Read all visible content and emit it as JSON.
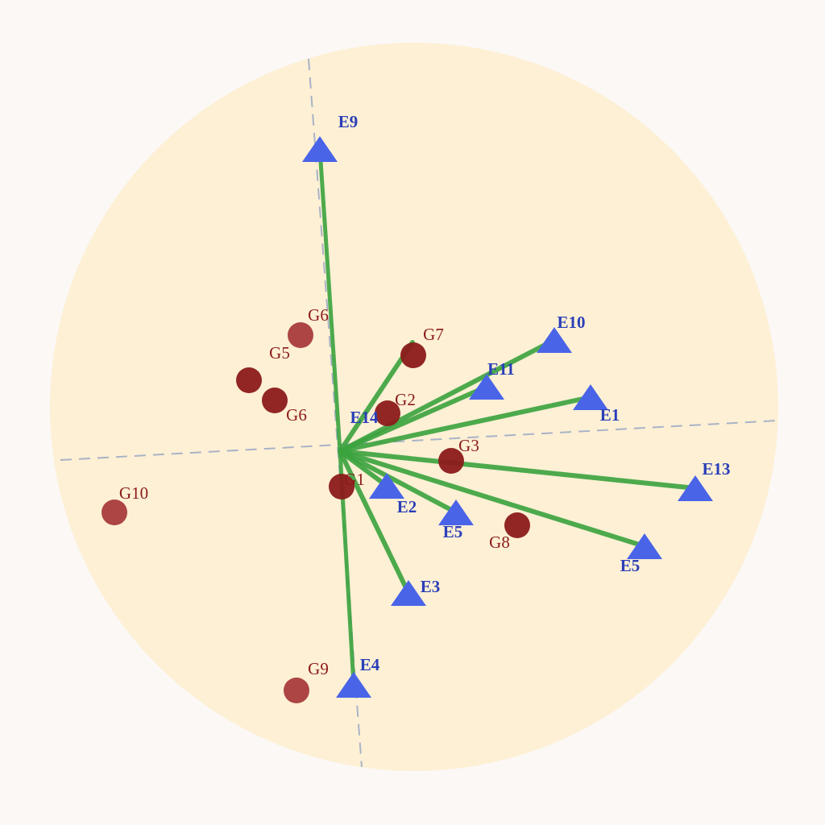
{
  "chart_data": {
    "type": "scatter",
    "title": "",
    "xlabel": "",
    "ylabel": "",
    "grid": false,
    "colors": {
      "background_circle": "#fdf0d5",
      "vector": "#3aa33e",
      "environment": "#4a64e8",
      "genotype": "#8b1a1a",
      "genotype_light": "#a83b3b",
      "axis": "#a9b3c6"
    },
    "environments": [
      {
        "label": "E9",
        "x": -0.25,
        "y": 3.75
      },
      {
        "label": "E10",
        "x": 2.66,
        "y": 1.38
      },
      {
        "label": "E11",
        "x": 1.82,
        "y": 0.8
      },
      {
        "label": "E1",
        "x": 3.11,
        "y": 0.67
      },
      {
        "label": "E13",
        "x": 4.41,
        "y": -0.46
      },
      {
        "label": "E5",
        "x": 3.78,
        "y": -1.18
      },
      {
        "label": "E5",
        "x": 1.44,
        "y": -0.76
      },
      {
        "label": "E2",
        "x": 0.58,
        "y": -0.43
      },
      {
        "label": "E3",
        "x": 0.85,
        "y": -1.76
      },
      {
        "label": "E4",
        "x": 0.17,
        "y": -2.9
      },
      {
        "label": "E14",
        "x": 0.9,
        "y": 1.35
      }
    ],
    "genotypes": [
      {
        "label": "G6",
        "x": -0.49,
        "y": 1.44,
        "color": "#a83b3b"
      },
      {
        "label": "G5",
        "x": -1.13,
        "y": 0.88,
        "color": "#8b1a1a"
      },
      {
        "label": "G6",
        "x": -0.81,
        "y": 0.63,
        "color": "#8b1a1a"
      },
      {
        "label": "G7",
        "x": 0.91,
        "y": 1.19,
        "color": "#8b1a1a"
      },
      {
        "label": "G2",
        "x": 0.59,
        "y": 0.47,
        "color": "#8b1a1a"
      },
      {
        "label": "G3",
        "x": 1.38,
        "y": -0.12,
        "color": "#8b1a1a"
      },
      {
        "label": "G1",
        "x": 0.02,
        "y": -0.44,
        "color": "#8b1a1a"
      },
      {
        "label": "G8",
        "x": 2.2,
        "y": -0.92,
        "color": "#8b1a1a"
      },
      {
        "label": "G9",
        "x": -0.54,
        "y": -2.97,
        "color": "#a83b3b"
      },
      {
        "label": "G10",
        "x": -2.8,
        "y": -0.76,
        "color": "#a83b3b"
      }
    ]
  }
}
